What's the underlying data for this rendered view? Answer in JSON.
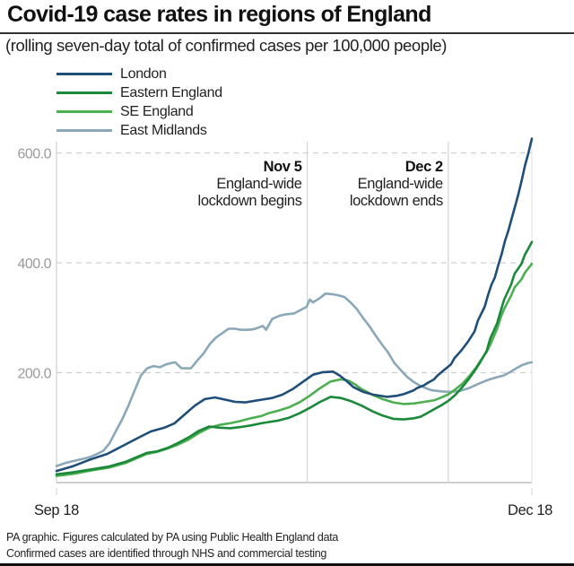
{
  "chart_data": {
    "type": "line",
    "title": "Covid-19 case rates in regions of England",
    "subtitle": "(rolling seven-day total of confirmed cases per 100,000 people)",
    "xlabel": "",
    "ylabel": "",
    "x_start_label": "Sep 18",
    "x_end_label": "Dec 18",
    "x_unit": "days since Sep 18",
    "xlim": [
      0,
      91
    ],
    "ylim": [
      0,
      620
    ],
    "yticks": [
      200,
      400,
      600
    ],
    "ytick_labels": [
      "200.0",
      "400.0",
      "600.0"
    ],
    "grid": "horizontal dashed",
    "legend_position": "top-left",
    "annotations": [
      {
        "day": 48,
        "date": "Nov 5",
        "line1": "England-wide",
        "line2": "lockdown begins"
      },
      {
        "day": 75,
        "date": "Dec 2",
        "line1": "England-wide",
        "line2": "lockdown ends"
      }
    ],
    "series": [
      {
        "name": "London",
        "color": "#1f4e79",
        "points": [
          [
            0,
            21
          ],
          [
            5,
            30
          ],
          [
            10,
            42
          ],
          [
            15,
            52
          ],
          [
            20,
            68
          ],
          [
            25,
            84
          ],
          [
            28,
            93
          ],
          [
            32,
            100
          ],
          [
            35,
            108
          ],
          [
            38,
            124
          ],
          [
            41,
            140
          ],
          [
            44,
            152
          ],
          [
            47,
            155
          ],
          [
            50,
            151
          ],
          [
            53,
            147
          ],
          [
            56,
            146
          ],
          [
            59,
            149
          ],
          [
            61,
            151
          ],
          [
            64,
            154
          ],
          [
            67,
            160
          ],
          [
            70,
            170
          ],
          [
            73,
            183
          ],
          [
            76,
            196
          ],
          [
            79,
            201
          ],
          [
            82,
            202
          ],
          [
            84,
            195
          ],
          [
            86,
            185
          ],
          [
            88,
            174
          ],
          [
            91,
            165
          ],
          [
            94,
            160
          ],
          [
            98,
            156
          ],
          [
            101,
            158
          ],
          [
            103,
            161
          ],
          [
            106,
            168
          ],
          [
            107,
            172
          ],
          [
            109,
            177
          ],
          [
            110,
            181
          ],
          [
            112,
            188
          ],
          [
            113,
            195
          ],
          [
            115,
            205
          ],
          [
            117,
            215
          ],
          [
            118,
            226
          ],
          [
            120,
            240
          ],
          [
            122,
            256
          ],
          [
            124,
            275
          ],
          [
            125,
            295
          ],
          [
            127,
            320
          ],
          [
            128,
            341
          ],
          [
            129,
            360
          ],
          [
            130,
            373
          ],
          [
            131,
            395
          ],
          [
            132,
            415
          ],
          [
            133,
            439
          ],
          [
            134,
            458
          ],
          [
            135,
            480
          ],
          [
            136,
            502
          ],
          [
            137,
            525
          ],
          [
            138,
            550
          ],
          [
            139,
            578
          ],
          [
            140,
            600
          ],
          [
            141,
            626
          ]
        ]
      },
      {
        "name": "Eastern England",
        "color": "#1a8a3a",
        "points": [
          [
            0,
            15
          ],
          [
            5,
            19
          ],
          [
            10,
            24
          ],
          [
            15,
            29
          ],
          [
            20,
            38
          ],
          [
            23,
            46
          ],
          [
            26,
            54
          ],
          [
            29,
            57
          ],
          [
            32,
            63
          ],
          [
            35,
            72
          ],
          [
            38,
            82
          ],
          [
            41,
            94
          ],
          [
            44,
            102
          ],
          [
            47,
            100
          ],
          [
            50,
            99
          ],
          [
            53,
            101
          ],
          [
            56,
            104
          ],
          [
            59,
            108
          ],
          [
            61,
            110
          ],
          [
            64,
            113
          ],
          [
            67,
            118
          ],
          [
            70,
            126
          ],
          [
            73,
            136
          ],
          [
            76,
            147
          ],
          [
            79,
            156
          ],
          [
            82,
            154
          ],
          [
            85,
            148
          ],
          [
            88,
            140
          ],
          [
            91,
            130
          ],
          [
            94,
            122
          ],
          [
            97,
            116
          ],
          [
            100,
            115
          ],
          [
            103,
            117
          ],
          [
            105,
            120
          ],
          [
            107,
            127
          ],
          [
            109,
            134
          ],
          [
            111,
            141
          ],
          [
            113,
            149
          ],
          [
            115,
            160
          ],
          [
            117,
            174
          ],
          [
            119,
            190
          ],
          [
            121,
            208
          ],
          [
            122,
            218
          ],
          [
            124,
            240
          ],
          [
            125,
            262
          ],
          [
            127,
            290
          ],
          [
            128,
            312
          ],
          [
            129,
            333
          ],
          [
            131,
            360
          ],
          [
            132,
            380
          ],
          [
            134,
            398
          ],
          [
            135,
            415
          ],
          [
            136,
            426
          ],
          [
            137,
            438
          ]
        ]
      },
      {
        "name": "SE England",
        "color": "#4caf50",
        "points": [
          [
            0,
            12
          ],
          [
            5,
            16
          ],
          [
            10,
            22
          ],
          [
            15,
            27
          ],
          [
            20,
            36
          ],
          [
            23,
            44
          ],
          [
            26,
            52
          ],
          [
            29,
            56
          ],
          [
            32,
            62
          ],
          [
            35,
            69
          ],
          [
            38,
            78
          ],
          [
            41,
            90
          ],
          [
            44,
            100
          ],
          [
            47,
            105
          ],
          [
            50,
            108
          ],
          [
            53,
            112
          ],
          [
            56,
            117
          ],
          [
            59,
            121
          ],
          [
            61,
            126
          ],
          [
            64,
            131
          ],
          [
            67,
            137
          ],
          [
            70,
            146
          ],
          [
            73,
            158
          ],
          [
            76,
            172
          ],
          [
            79,
            184
          ],
          [
            82,
            188
          ],
          [
            84,
            186
          ],
          [
            86,
            179
          ],
          [
            88,
            170
          ],
          [
            91,
            160
          ],
          [
            94,
            152
          ],
          [
            97,
            146
          ],
          [
            100,
            143
          ],
          [
            103,
            144
          ],
          [
            106,
            147
          ],
          [
            109,
            150
          ],
          [
            111,
            155
          ],
          [
            113,
            161
          ],
          [
            115,
            170
          ],
          [
            117,
            180
          ],
          [
            119,
            194
          ],
          [
            121,
            210
          ],
          [
            122,
            220
          ],
          [
            124,
            238
          ],
          [
            125,
            251
          ],
          [
            127,
            280
          ],
          [
            128,
            300
          ],
          [
            129,
            316
          ],
          [
            131,
            340
          ],
          [
            132,
            355
          ],
          [
            134,
            370
          ],
          [
            135,
            382
          ],
          [
            136,
            390
          ],
          [
            137,
            398
          ]
        ]
      },
      {
        "name": "East Midlands",
        "color": "#8aa8b8",
        "points": [
          [
            0,
            30
          ],
          [
            3,
            36
          ],
          [
            6,
            40
          ],
          [
            9,
            44
          ],
          [
            11,
            47
          ],
          [
            13,
            52
          ],
          [
            15,
            58
          ],
          [
            17,
            72
          ],
          [
            19,
            94
          ],
          [
            21,
            115
          ],
          [
            23,
            140
          ],
          [
            25,
            168
          ],
          [
            27,
            195
          ],
          [
            29,
            208
          ],
          [
            31,
            212
          ],
          [
            33,
            210
          ],
          [
            35,
            215
          ],
          [
            37,
            218
          ],
          [
            38,
            219
          ],
          [
            39,
            213
          ],
          [
            40,
            208
          ],
          [
            42,
            208
          ],
          [
            43,
            208
          ],
          [
            45,
            222
          ],
          [
            47,
            235
          ],
          [
            49,
            252
          ],
          [
            51,
            264
          ],
          [
            53,
            272
          ],
          [
            55,
            280
          ],
          [
            57,
            280
          ],
          [
            59,
            278
          ],
          [
            61,
            278
          ],
          [
            63,
            279
          ],
          [
            65,
            283
          ],
          [
            66,
            285
          ],
          [
            67,
            278
          ],
          [
            69,
            298
          ],
          [
            71,
            303
          ],
          [
            73,
            306
          ],
          [
            76,
            308
          ],
          [
            78,
            314
          ],
          [
            80,
            320
          ],
          [
            81,
            333
          ],
          [
            82,
            328
          ],
          [
            84,
            335
          ],
          [
            86,
            344
          ],
          [
            88,
            343
          ],
          [
            90,
            341
          ],
          [
            92,
            338
          ],
          [
            94,
            328
          ],
          [
            96,
            316
          ],
          [
            98,
            300
          ],
          [
            100,
            285
          ],
          [
            102,
            268
          ],
          [
            104,
            252
          ],
          [
            106,
            237
          ],
          [
            108,
            218
          ],
          [
            110,
            205
          ],
          [
            112,
            193
          ],
          [
            114,
            184
          ],
          [
            116,
            177
          ],
          [
            118,
            172
          ],
          [
            120,
            168
          ],
          [
            123,
            166
          ],
          [
            126,
            165
          ],
          [
            129,
            167
          ],
          [
            132,
            172
          ],
          [
            135,
            180
          ],
          [
            138,
            187
          ],
          [
            141,
            192
          ],
          [
            143,
            195
          ],
          [
            145,
            201
          ],
          [
            147,
            208
          ],
          [
            149,
            214
          ],
          [
            151,
            218
          ],
          [
            152,
            219
          ]
        ]
      }
    ]
  },
  "footer": {
    "line1": "PA graphic. Figures calculated by PA using Public Health England data",
    "line2": "Confirmed cases are identified through NHS and commercial testing"
  }
}
